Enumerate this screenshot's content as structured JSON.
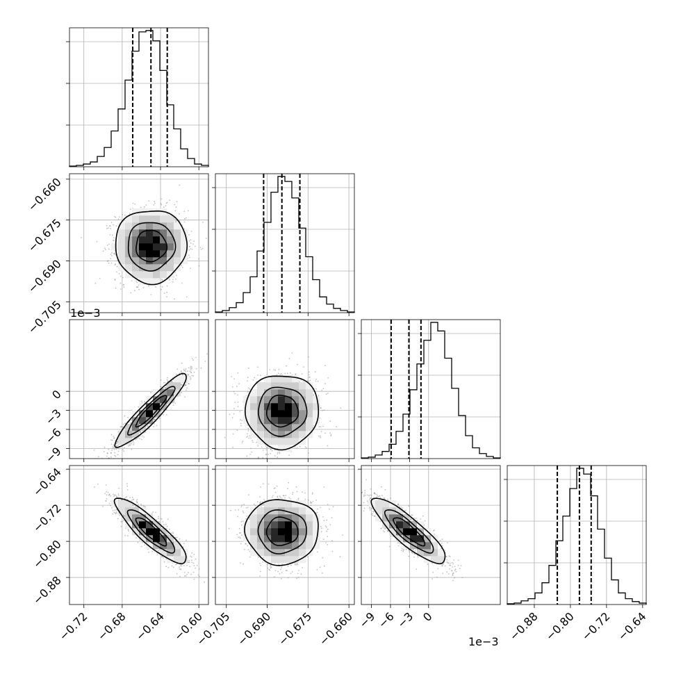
{
  "chart_data": {
    "type": "corner",
    "dimensions": [
      {
        "range": [
          -0.735,
          -0.59
        ],
        "center": -0.65,
        "sigma": 0.018,
        "quantiles": [
          -0.669,
          -0.65,
          -0.633
        ],
        "ticks": [
          -0.72,
          -0.68,
          -0.64,
          -0.6
        ],
        "tick_labels": [
          "−0.72",
          "−0.68",
          "−0.64",
          "−0.60"
        ],
        "offset_label": ""
      },
      {
        "range": [
          -0.709,
          -0.658
        ],
        "center": -0.6845,
        "sigma": 0.0065,
        "quantiles": [
          -0.6913,
          -0.6846,
          -0.678
        ],
        "ticks": [
          -0.705,
          -0.69,
          -0.675,
          -0.66
        ],
        "tick_labels": [
          "−0.705",
          "−0.690",
          "−0.675",
          "−0.660"
        ],
        "offset_label": ""
      },
      {
        "range": [
          -0.0106,
          0.0113
        ],
        "center": -0.0031,
        "sigma": 0.0028,
        "quantiles": [
          -0.0059,
          -0.0031,
          -0.0012
        ],
        "ticks": [
          -0.009,
          -0.006,
          -0.003,
          0.0
        ],
        "tick_labels": [
          "−9",
          "−6",
          "−3",
          "0"
        ],
        "offset_label": "1e−3"
      },
      {
        "range": [
          -0.94,
          -0.632
        ],
        "center": -0.778,
        "sigma": 0.035,
        "quantiles": [
          -0.829,
          -0.78,
          -0.754
        ],
        "ticks": [
          -0.88,
          -0.8,
          -0.72,
          -0.64
        ],
        "tick_labels": [
          "−0.88",
          "−0.80",
          "−0.72",
          "−0.64"
        ],
        "offset_label": ""
      }
    ],
    "histograms": [
      {
        "dim": 0,
        "values": [
          1,
          2,
          4,
          7,
          15,
          28,
          52,
          84,
          126,
          168,
          196,
          198,
          183,
          140,
          90,
          55,
          26,
          12,
          4,
          2
        ]
      },
      {
        "dim": 1,
        "values": [
          1,
          3,
          7,
          14,
          28,
          50,
          86,
          126,
          168,
          190,
          183,
          160,
          118,
          78,
          46,
          22,
          12,
          6,
          3,
          1
        ]
      },
      {
        "dim": 2,
        "values": [
          1,
          2,
          5,
          10,
          20,
          38,
          62,
          96,
          132,
          165,
          190,
          178,
          140,
          98,
          60,
          32,
          15,
          7,
          3,
          1
        ]
      },
      {
        "dim": 3,
        "values": [
          1,
          2,
          5,
          8,
          16,
          30,
          54,
          88,
          122,
          160,
          188,
          180,
          150,
          104,
          64,
          34,
          16,
          8,
          4,
          2
        ]
      }
    ],
    "correlations": [
      {
        "row": 1,
        "col": 0,
        "rho": 0.0
      },
      {
        "row": 2,
        "col": 0,
        "rho": 0.93
      },
      {
        "row": 2,
        "col": 1,
        "rho": 0.0
      },
      {
        "row": 3,
        "col": 0,
        "rho": -0.88
      },
      {
        "row": 3,
        "col": 1,
        "rho": 0.0
      },
      {
        "row": 3,
        "col": 2,
        "rho": -0.86
      }
    ],
    "contour_levels_sigma": [
      0.5,
      1.0,
      1.5
    ],
    "grid": true
  }
}
